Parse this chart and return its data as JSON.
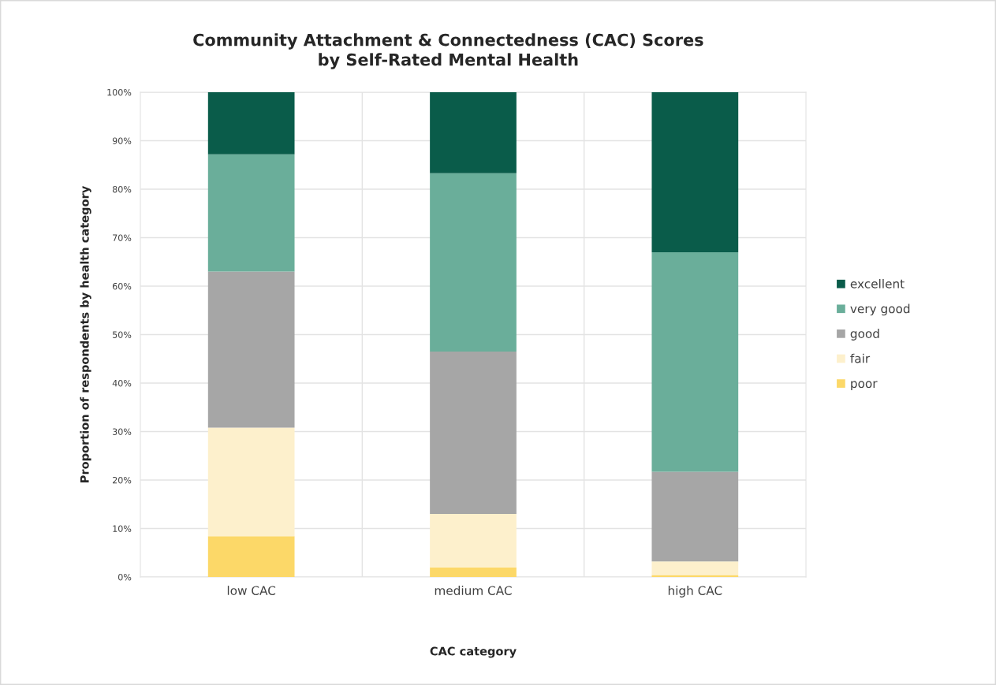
{
  "chart_data": {
    "type": "bar",
    "stacked": true,
    "title": "Community Attachment & Connectedness (CAC) Scores\nby Self-Rated Mental Health",
    "xlabel": "CAC category",
    "ylabel": "Proportion of respondents by health category",
    "categories": [
      "low CAC",
      "medium CAC",
      "high CAC"
    ],
    "series": [
      {
        "name": "poor",
        "color": "#fcd868",
        "values": [
          8.4,
          2,
          0.4
        ]
      },
      {
        "name": "fair",
        "color": "#fdf0cc",
        "values": [
          22.4,
          11,
          2.8
        ]
      },
      {
        "name": "good",
        "color": "#a6a6a6",
        "values": [
          32.2,
          33.5,
          18.5
        ]
      },
      {
        "name": "very good",
        "color": "#6aae9a",
        "values": [
          24.2,
          36.8,
          45.3
        ]
      },
      {
        "name": "excellent",
        "color": "#0a5c4a",
        "values": [
          12.8,
          16.7,
          33
        ]
      }
    ],
    "ylim": [
      0,
      100
    ],
    "yticks": [
      {
        "value": 0,
        "label": "0%"
      },
      {
        "value": 10,
        "label": "10%"
      },
      {
        "value": 20,
        "label": "20%"
      },
      {
        "value": 30,
        "label": "30%"
      },
      {
        "value": 40,
        "label": "40%"
      },
      {
        "value": 50,
        "label": "50%"
      },
      {
        "value": 60,
        "label": "60%"
      },
      {
        "value": 70,
        "label": "70%"
      },
      {
        "value": 80,
        "label": "80%"
      },
      {
        "value": 90,
        "label": "90%"
      },
      {
        "value": 100,
        "label": "100%"
      }
    ],
    "grid": true,
    "legend": "right"
  }
}
